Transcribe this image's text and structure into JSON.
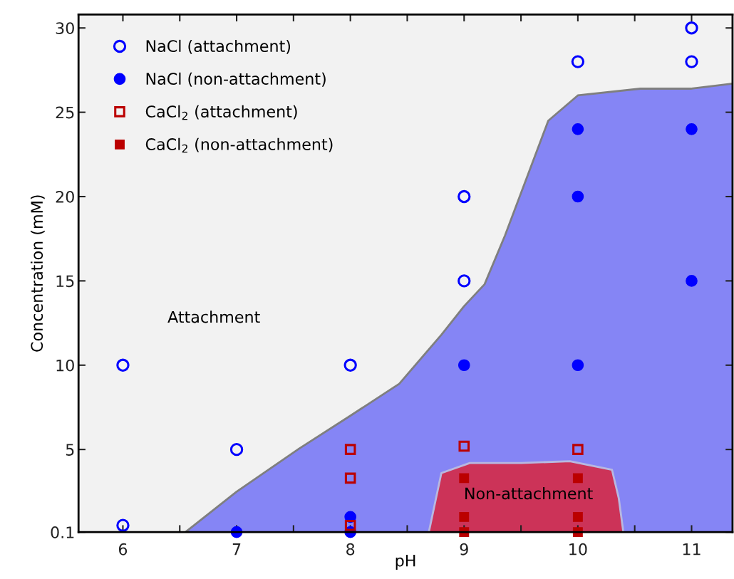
{
  "chart_data": {
    "type": "scatter",
    "xlabel": "pH",
    "ylabel": "Concentration (mM)",
    "xlim": [
      5.61,
      11.36
    ],
    "ylim": [
      0.1,
      30.8
    ],
    "xticks": [
      6,
      {
        "value": 6.5,
        "label": null
      },
      7,
      {
        "value": 7.5,
        "label": null
      },
      8,
      {
        "value": 8.5,
        "label": null
      },
      9,
      {
        "value": 9.5,
        "label": null
      },
      10,
      {
        "value": 10.5,
        "label": null
      },
      11
    ],
    "yticks": [
      0.1,
      5,
      10,
      15,
      20,
      25,
      30
    ],
    "grid": false,
    "legend": "top left",
    "annotations": [
      "Attachment",
      "Non-attachment"
    ],
    "series": [
      {
        "type": "area",
        "color": "#8585f5",
        "x": [
          6.55,
          7.0,
          7.55,
          8.0,
          8.43,
          8.8,
          9.0,
          9.18,
          9.36,
          9.55,
          9.74,
          10.0,
          10.55,
          11.0,
          11.36
        ],
        "values": [
          0.1,
          2.5,
          5.05,
          7.0,
          8.9,
          11.8,
          13.5,
          14.8,
          17.7,
          21.1,
          24.5,
          26.0,
          26.4,
          26.4,
          26.7
        ]
      },
      {
        "type": "area",
        "color": "#cc3358",
        "x": [
          8.69,
          8.8,
          9.05,
          9.5,
          9.93,
          10.3,
          10.36,
          10.4
        ],
        "values": [
          0.1,
          3.6,
          4.2,
          4.2,
          4.3,
          3.8,
          2.1,
          0.1
        ]
      },
      {
        "name": "NaCl (attachment)",
        "color": "#0000ff",
        "marker": "circle",
        "x": [
          6,
          6,
          7,
          8,
          9,
          9,
          10,
          11,
          11
        ],
        "values": [
          10,
          0.5,
          5,
          10,
          20,
          15,
          28,
          30,
          28
        ]
      },
      {
        "name": "NaCl (non-attachment)",
        "color": "#0000ff",
        "marker": "circle",
        "x": [
          7,
          8,
          8,
          9,
          10,
          10,
          10,
          11,
          11
        ],
        "values": [
          0.1,
          1,
          0.1,
          10,
          24,
          20,
          10,
          24,
          15
        ]
      },
      {
        "name": "CaCl$_{2}$ (attachment)",
        "color": "#bb0000",
        "marker": "square",
        "x": [
          8,
          8,
          8,
          9,
          10
        ],
        "values": [
          5,
          3.3,
          0.5,
          5.2,
          5
        ]
      },
      {
        "name": "CaCl$_{2}$ (non-attachment)",
        "color": "#bb0000",
        "marker": "square",
        "x": [
          9,
          9,
          9,
          10,
          10,
          10
        ],
        "values": [
          3.3,
          1,
          0.1,
          3.3,
          1,
          0.1
        ]
      }
    ]
  }
}
